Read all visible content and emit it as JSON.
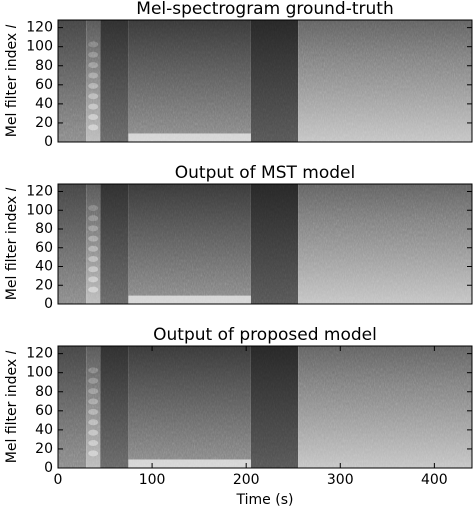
{
  "chart_data": [
    {
      "type": "spectrogram",
      "title": "Mel-spectrogram ground-truth",
      "ylabel": "Mel filter index 𝑙",
      "xlim": [
        0,
        440
      ],
      "ylim": [
        0,
        128
      ],
      "yticks": [
        0,
        20,
        40,
        60,
        80,
        100,
        120
      ]
    },
    {
      "type": "spectrogram",
      "title": "Output of MST model",
      "ylabel": "Mel filter index 𝑙",
      "xlim": [
        0,
        440
      ],
      "ylim": [
        0,
        128
      ],
      "yticks": [
        0,
        20,
        40,
        60,
        80,
        100,
        120
      ]
    },
    {
      "type": "spectrogram",
      "title": "Output of proposed model",
      "ylabel": "Mel filter index 𝑙",
      "xlabel": "Time (s)",
      "xlim": [
        0,
        440
      ],
      "ylim": [
        0,
        128
      ],
      "yticks": [
        0,
        20,
        40,
        60,
        80,
        100,
        120
      ],
      "xticks": [
        0,
        100,
        200,
        300,
        400
      ]
    }
  ]
}
